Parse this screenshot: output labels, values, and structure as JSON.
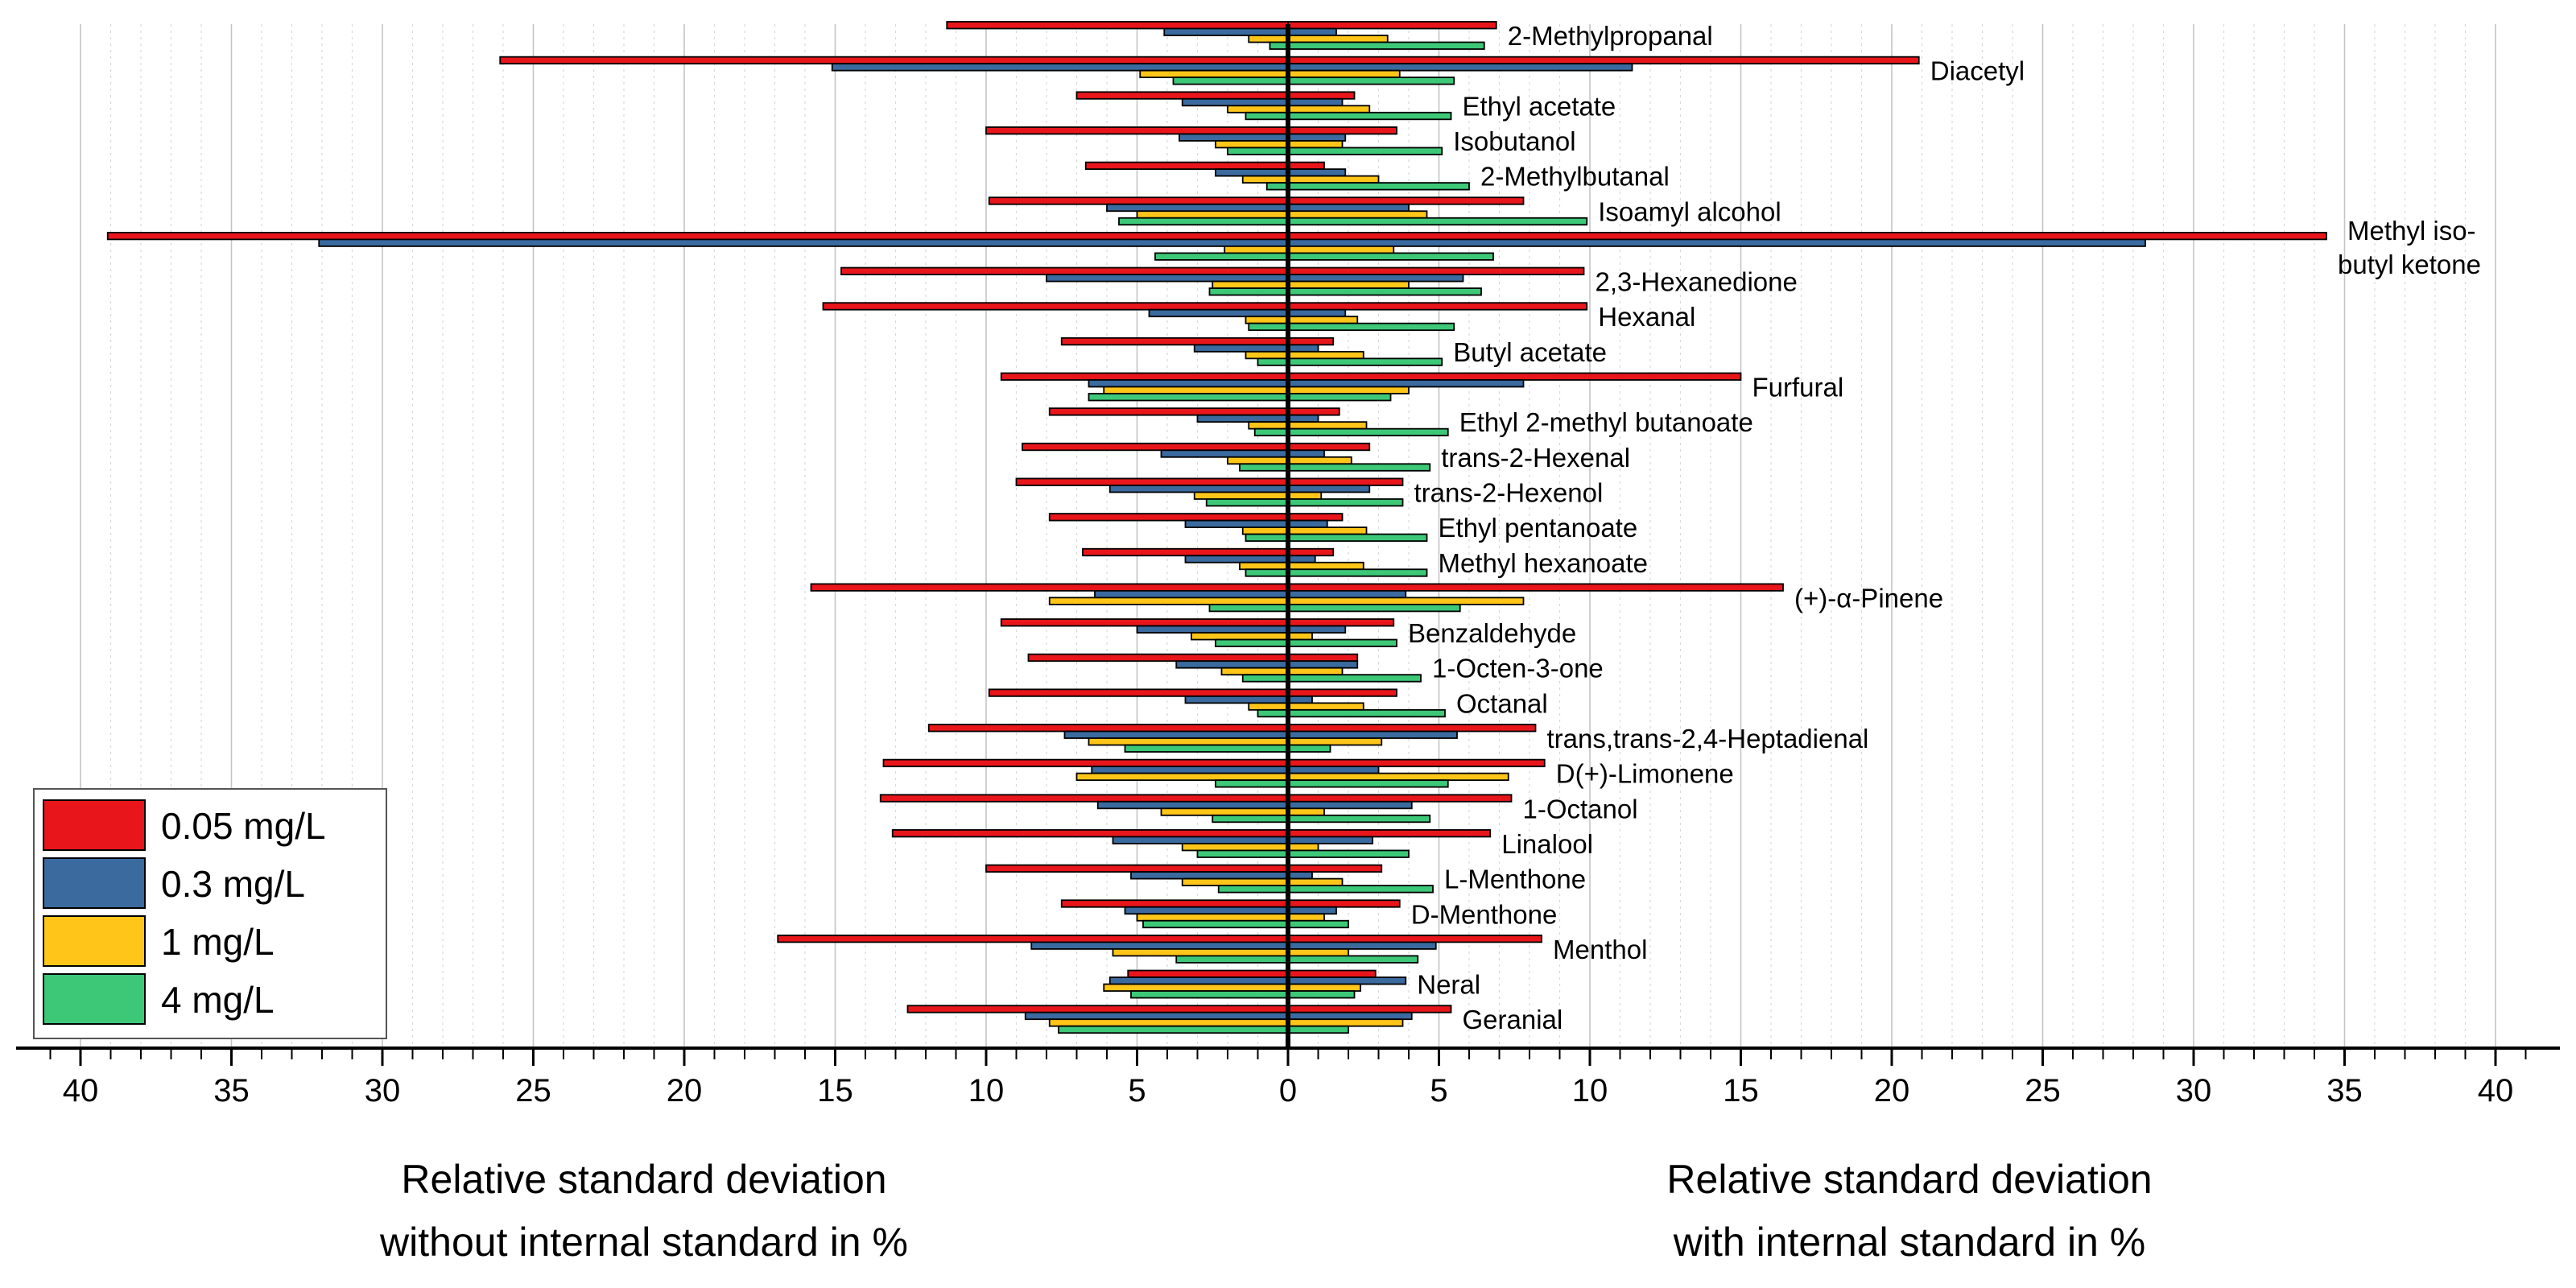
{
  "chart_data": {
    "type": "bar",
    "orientation": "horizontal-diverging",
    "left_axis_title": [
      "Relative standard deviation",
      "without internal standard in %"
    ],
    "right_axis_title": [
      "Relative standard deviation",
      "with internal standard in %"
    ],
    "xlim": [
      0,
      40
    ],
    "tick_labels": [
      "40",
      "35",
      "30",
      "25",
      "20",
      "15",
      "10",
      "5",
      "0",
      "5",
      "10",
      "15",
      "20",
      "25",
      "30",
      "35",
      "40"
    ],
    "legend_position": "bottom-left",
    "series": [
      {
        "name": "0.05 mg/L",
        "color": "#e8161b"
      },
      {
        "name": "0.3 mg/L",
        "color": "#3a6a9e"
      },
      {
        "name": "1 mg/L",
        "color": "#ffc619"
      },
      {
        "name": "4 mg/L",
        "color": "#3dc878"
      }
    ],
    "compounds": [
      {
        "name": "2-Methylpropanal",
        "without": [
          11.3,
          4.1,
          1.3,
          0.6
        ],
        "with": [
          6.9,
          1.6,
          3.3,
          6.5
        ]
      },
      {
        "name": "Diacetyl",
        "without": [
          26.1,
          15.1,
          4.9,
          3.8
        ],
        "with": [
          20.9,
          11.4,
          3.7,
          5.5
        ]
      },
      {
        "name": "Ethyl acetate",
        "without": [
          7.0,
          3.5,
          2.0,
          1.4
        ],
        "with": [
          2.2,
          1.8,
          2.7,
          5.4
        ]
      },
      {
        "name": "Isobutanol",
        "without": [
          10.0,
          3.6,
          2.4,
          2.0
        ],
        "with": [
          3.6,
          1.9,
          1.8,
          5.1
        ]
      },
      {
        "name": "2-Methylbutanal",
        "without": [
          6.7,
          2.4,
          1.5,
          0.7
        ],
        "with": [
          1.2,
          1.9,
          3.0,
          6.0
        ]
      },
      {
        "name": "Isoamyl alcohol",
        "without": [
          9.9,
          6.0,
          5.0,
          5.6
        ],
        "with": [
          7.8,
          4.0,
          4.6,
          9.9
        ]
      },
      {
        "name": "Methyl iso-\nbutyl ketone",
        "without": [
          39.1,
          32.1,
          2.1,
          4.4
        ],
        "with": [
          34.4,
          28.4,
          3.5,
          6.8
        ]
      },
      {
        "name": "2,3-Hexanedione",
        "without": [
          14.8,
          8.0,
          2.5,
          2.6
        ],
        "with": [
          9.8,
          5.8,
          4.0,
          6.4
        ]
      },
      {
        "name": "Hexanal",
        "without": [
          15.4,
          4.6,
          1.4,
          1.3
        ],
        "with": [
          9.9,
          1.9,
          2.3,
          5.5
        ]
      },
      {
        "name": "Butyl acetate",
        "without": [
          7.5,
          3.1,
          1.4,
          1.0
        ],
        "with": [
          1.5,
          1.0,
          2.5,
          5.1
        ]
      },
      {
        "name": "Furfural",
        "without": [
          9.5,
          6.6,
          6.1,
          6.6
        ],
        "with": [
          15.0,
          7.8,
          4.0,
          3.4
        ]
      },
      {
        "name": "Ethyl 2-methyl butanoate",
        "without": [
          7.9,
          3.0,
          1.3,
          1.1
        ],
        "with": [
          1.7,
          1.0,
          2.6,
          5.3
        ]
      },
      {
        "name": "trans-2-Hexenal",
        "without": [
          8.8,
          4.2,
          2.0,
          1.6
        ],
        "with": [
          2.7,
          1.2,
          2.1,
          4.7
        ]
      },
      {
        "name": "trans-2-Hexenol",
        "without": [
          9.0,
          5.9,
          3.1,
          2.7
        ],
        "with": [
          3.8,
          2.7,
          1.1,
          3.8
        ]
      },
      {
        "name": "Ethyl pentanoate",
        "without": [
          7.9,
          3.4,
          1.5,
          1.4
        ],
        "with": [
          1.8,
          1.3,
          2.6,
          4.6
        ]
      },
      {
        "name": "Methyl hexanoate",
        "without": [
          6.8,
          3.4,
          1.6,
          1.4
        ],
        "with": [
          1.5,
          0.9,
          2.5,
          4.6
        ]
      },
      {
        "name": "(+)-α-Pinene",
        "without": [
          15.8,
          6.4,
          7.9,
          2.6
        ],
        "with": [
          16.4,
          3.9,
          7.8,
          5.7
        ]
      },
      {
        "name": "Benzaldehyde",
        "without": [
          9.5,
          5.0,
          3.2,
          2.4
        ],
        "with": [
          3.5,
          1.9,
          0.8,
          3.6
        ]
      },
      {
        "name": "1-Octen-3-one",
        "without": [
          8.6,
          3.7,
          2.2,
          1.5
        ],
        "with": [
          2.3,
          2.3,
          1.8,
          4.4
        ]
      },
      {
        "name": "Octanal",
        "without": [
          9.9,
          3.4,
          1.3,
          1.0
        ],
        "with": [
          3.6,
          0.8,
          2.5,
          5.2
        ]
      },
      {
        "name": "trans,trans-2,4-Heptadienal",
        "without": [
          11.9,
          7.4,
          6.6,
          5.4
        ],
        "with": [
          8.2,
          5.6,
          3.1,
          1.4
        ]
      },
      {
        "name": "D(+)-Limonene",
        "without": [
          13.4,
          6.5,
          7.0,
          2.4
        ],
        "with": [
          8.5,
          3.0,
          7.3,
          5.3
        ]
      },
      {
        "name": "1-Octanol",
        "without": [
          13.5,
          6.3,
          4.2,
          2.5
        ],
        "with": [
          7.4,
          4.1,
          1.2,
          4.7
        ]
      },
      {
        "name": "Linalool",
        "without": [
          13.1,
          5.8,
          3.5,
          3.0
        ],
        "with": [
          6.7,
          2.8,
          1.0,
          4.0
        ]
      },
      {
        "name": "L-Menthone",
        "without": [
          10.0,
          5.2,
          3.5,
          2.3
        ],
        "with": [
          3.1,
          0.8,
          1.8,
          4.8
        ]
      },
      {
        "name": "D-Menthone",
        "without": [
          7.5,
          5.4,
          5.0,
          4.8
        ],
        "with": [
          3.7,
          1.6,
          1.2,
          2.0
        ]
      },
      {
        "name": "Menthol",
        "without": [
          16.9,
          8.5,
          5.8,
          3.7
        ],
        "with": [
          8.4,
          4.9,
          2.0,
          4.3
        ]
      },
      {
        "name": "Neral",
        "without": [
          5.3,
          5.9,
          6.1,
          5.2
        ],
        "with": [
          2.9,
          3.9,
          2.4,
          2.2
        ]
      },
      {
        "name": "Geranial",
        "without": [
          12.6,
          8.7,
          7.9,
          7.6
        ],
        "with": [
          5.4,
          4.1,
          3.8,
          2.0
        ]
      }
    ]
  }
}
